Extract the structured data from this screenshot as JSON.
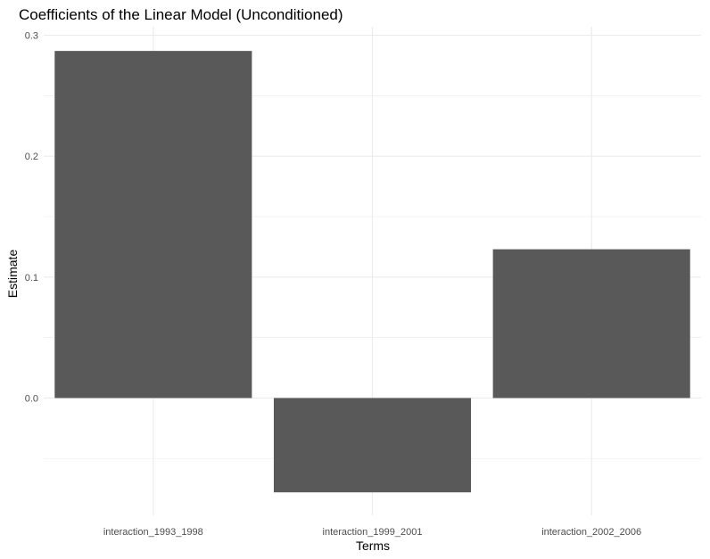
{
  "chart_data": {
    "type": "bar",
    "title": "Coefficients of the Linear Model (Unconditioned)",
    "xlabel": "Terms",
    "ylabel": "Estimate",
    "categories": [
      "interaction_1993_1998",
      "interaction_1999_2001",
      "interaction_2002_2006"
    ],
    "values": [
      0.287,
      -0.078,
      0.123
    ],
    "yticks": [
      0.0,
      0.1,
      0.2,
      0.3
    ],
    "ytick_labels": [
      "0.0",
      "0.1",
      "0.2",
      "0.3"
    ],
    "ylim": [
      -0.097,
      0.307
    ],
    "grid": true,
    "bar_color": "#595959",
    "grid_color": "#ebebeb"
  }
}
